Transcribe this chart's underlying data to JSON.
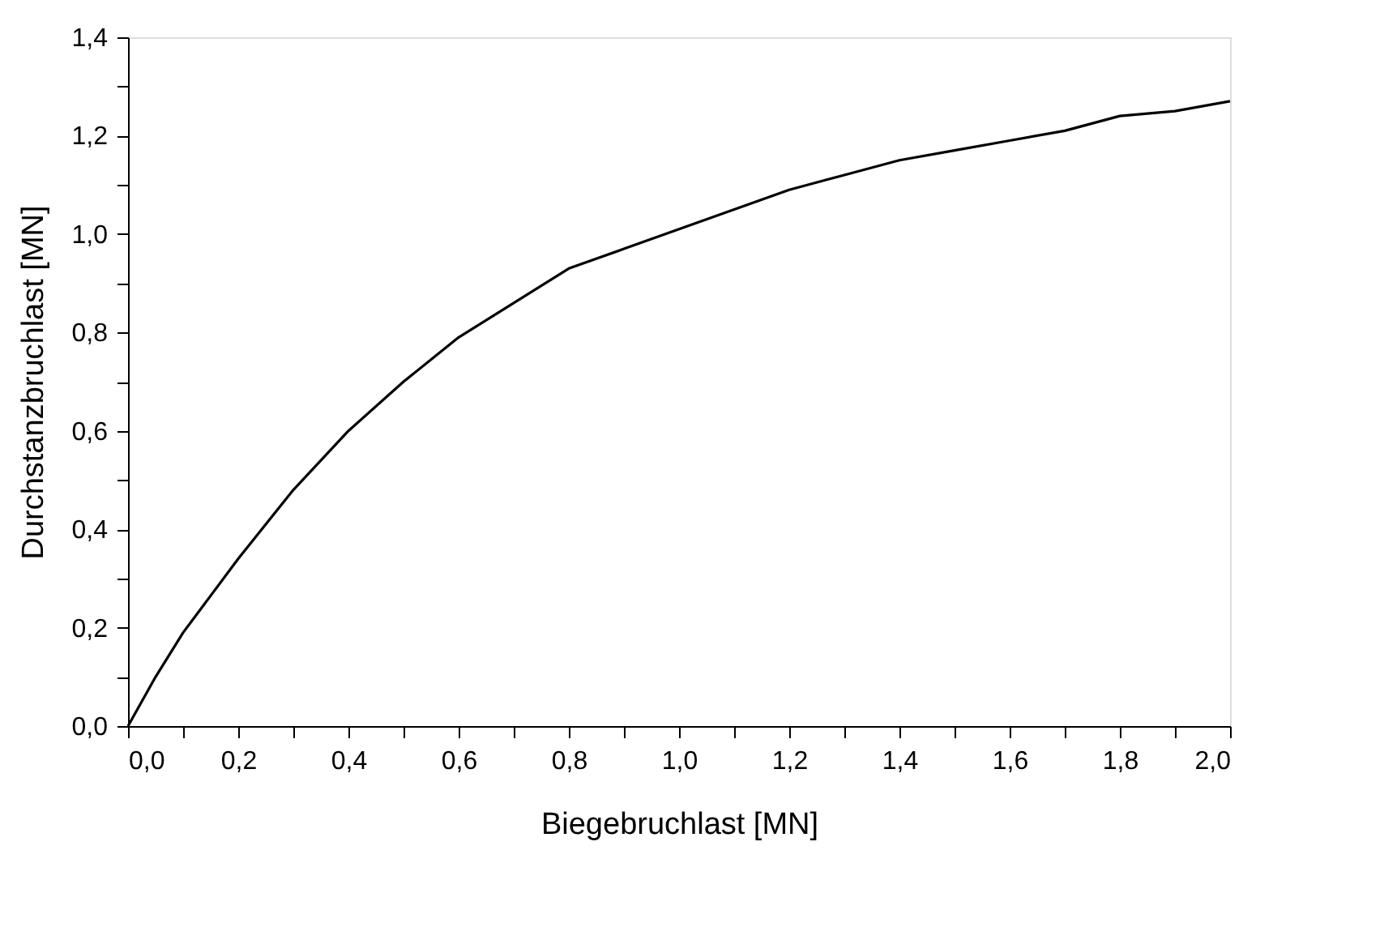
{
  "chart_data": {
    "type": "line",
    "xlabel": "Biegebruchlast [MN]",
    "ylabel": "Durchstanzbruchlast [MN]",
    "x": [
      0,
      0.05,
      0.1,
      0.2,
      0.3,
      0.4,
      0.5,
      0.6,
      0.7,
      0.8,
      0.9,
      1.0,
      1.1,
      1.2,
      1.3,
      1.4,
      1.5,
      1.6,
      1.7,
      1.8,
      1.9,
      2.0
    ],
    "series": [
      {
        "color": "#000000",
        "values": [
          0,
          0.1,
          0.19,
          0.34,
          0.48,
          0.6,
          0.7,
          0.79,
          0.86,
          0.93,
          0.97,
          1.01,
          1.05,
          1.09,
          1.12,
          1.15,
          1.17,
          1.19,
          1.21,
          1.24,
          1.25,
          1.27
        ]
      }
    ],
    "xlim": [
      0,
      2.0
    ],
    "ylim": [
      0,
      1.4
    ],
    "xticks": [
      {
        "value": 0,
        "label": "0,0"
      },
      {
        "value": 0.1,
        "label": null
      },
      {
        "value": 0.2,
        "label": "0,2"
      },
      {
        "value": 0.3,
        "label": null
      },
      {
        "value": 0.4,
        "label": "0,4"
      },
      {
        "value": 0.5,
        "label": null
      },
      {
        "value": 0.6,
        "label": "0,6"
      },
      {
        "value": 0.7,
        "label": null
      },
      {
        "value": 0.8,
        "label": "0,8"
      },
      {
        "value": 0.9,
        "label": null
      },
      {
        "value": 1.0,
        "label": "1,0"
      },
      {
        "value": 1.1,
        "label": null
      },
      {
        "value": 1.2,
        "label": "1,2"
      },
      {
        "value": 1.3,
        "label": null
      },
      {
        "value": 1.4,
        "label": "1,4"
      },
      {
        "value": 1.5,
        "label": null
      },
      {
        "value": 1.6,
        "label": "1,6"
      },
      {
        "value": 1.7,
        "label": null
      },
      {
        "value": 1.8,
        "label": "1,8"
      },
      {
        "value": 1.9,
        "label": null
      },
      {
        "value": 2.0,
        "label": "2,0"
      }
    ],
    "yticks": [
      {
        "value": 0,
        "label": "0,0"
      },
      {
        "value": 0.1,
        "label": null
      },
      {
        "value": 0.2,
        "label": "0,2"
      },
      {
        "value": 0.3,
        "label": null
      },
      {
        "value": 0.4,
        "label": "0,4"
      },
      {
        "value": 0.5,
        "label": null
      },
      {
        "value": 0.6,
        "label": "0,6"
      },
      {
        "value": 0.7,
        "label": null
      },
      {
        "value": 0.8,
        "label": "0,8"
      },
      {
        "value": 0.9,
        "label": null
      },
      {
        "value": 1.0,
        "label": "1,0"
      },
      {
        "value": 1.1,
        "label": null
      },
      {
        "value": 1.2,
        "label": "1,2"
      },
      {
        "value": 1.3,
        "label": null
      },
      {
        "value": 1.4,
        "label": "1,4"
      }
    ],
    "grid": false,
    "marker": "none",
    "line_style": "solid"
  }
}
